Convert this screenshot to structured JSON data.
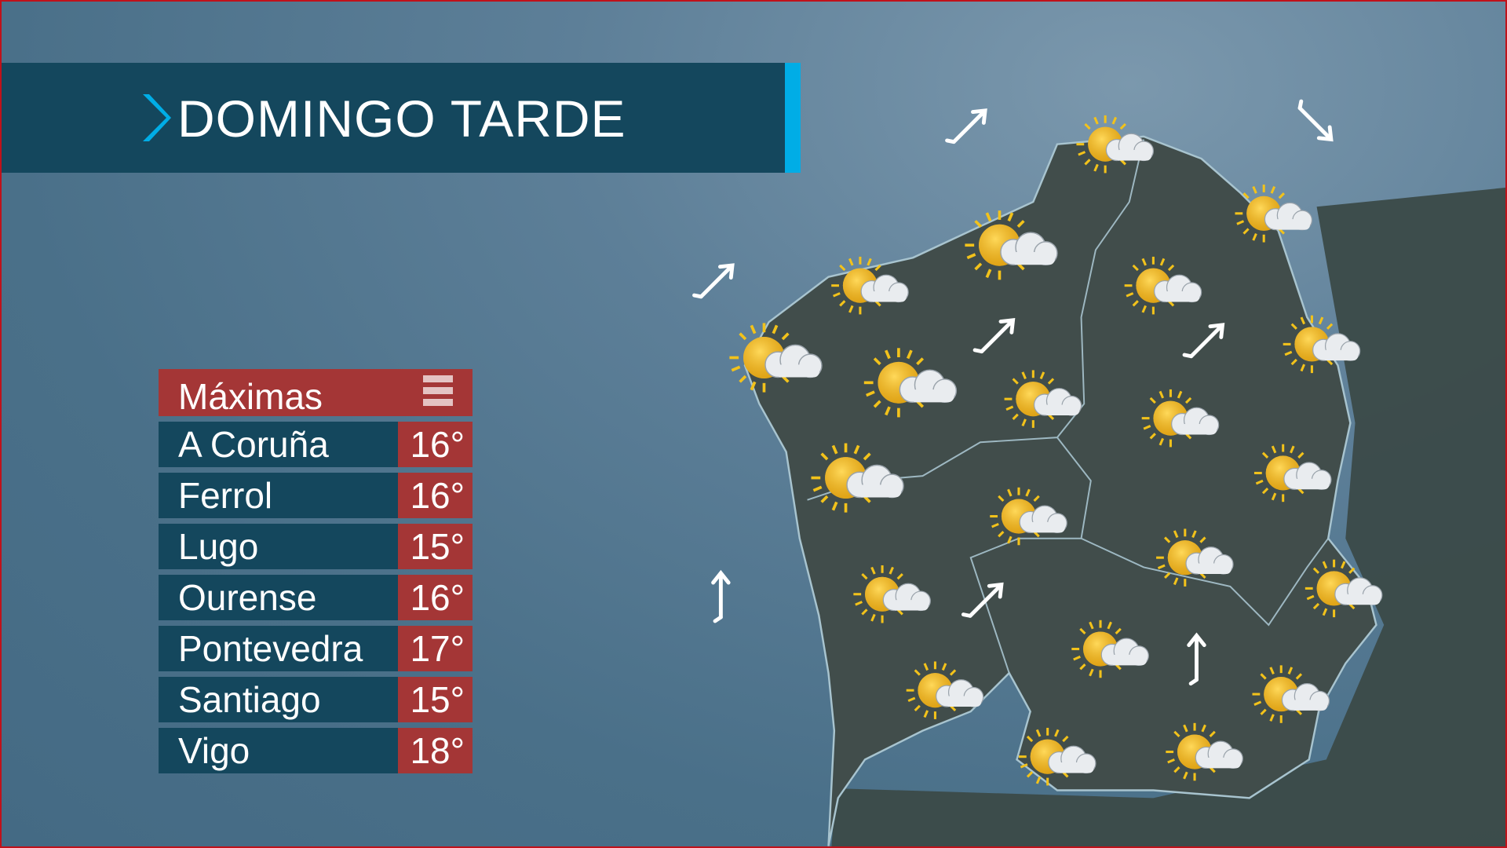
{
  "header": {
    "title": "DOMINGO TARDE",
    "accent_color": "#00ade6"
  },
  "table": {
    "title": "Máximas",
    "rows": [
      {
        "city": "A Coruña",
        "temp": "16°"
      },
      {
        "city": "Ferrol",
        "temp": "16°"
      },
      {
        "city": "Lugo",
        "temp": "15°"
      },
      {
        "city": "Ourense",
        "temp": "16°"
      },
      {
        "city": "Pontevedra",
        "temp": "17°"
      },
      {
        "city": "Santiago",
        "temp": "15°"
      },
      {
        "city": "Vigo",
        "temp": "18°"
      }
    ]
  },
  "map": {
    "weather_icons": [
      "partly-cloudy",
      "partly-cloudy",
      "partly-cloudy",
      "partly-cloudy",
      "partly-cloudy",
      "partly-cloudy",
      "partly-cloudy",
      "partly-cloudy",
      "partly-cloudy",
      "partly-cloudy",
      "partly-cloudy",
      "partly-cloudy",
      "partly-cloudy",
      "partly-cloudy",
      "partly-cloudy",
      "partly-cloudy",
      "partly-cloudy",
      "partly-cloudy",
      "partly-cloudy",
      "partly-cloudy",
      "partly-cloudy"
    ],
    "wind_arrows": [
      "NE",
      "SE",
      "NE",
      "NE",
      "NE",
      "N",
      "NE",
      "N"
    ]
  },
  "colors": {
    "panel": "#14475d",
    "temp_bg": "#a43636",
    "border": "#c0111a"
  }
}
